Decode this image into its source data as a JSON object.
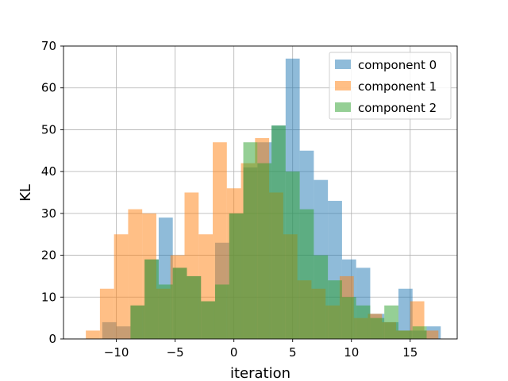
{
  "chart_data": {
    "type": "histogram",
    "title": "",
    "xlabel": "iteration",
    "ylabel": "KL",
    "xlim": [
      -14.5,
      19
    ],
    "ylim": [
      0,
      70
    ],
    "xticks": [
      -10,
      -5,
      0,
      5,
      10,
      15
    ],
    "xtick_labels": [
      "−10",
      "−5",
      "0",
      "5",
      "10",
      "15"
    ],
    "yticks": [
      0,
      10,
      20,
      30,
      40,
      50,
      60,
      70
    ],
    "ytick_labels": [
      "0",
      "10",
      "20",
      "30",
      "40",
      "50",
      "60",
      "70"
    ],
    "grid": true,
    "alpha": 0.5,
    "legend": {
      "placement": "top-right"
    },
    "series": [
      {
        "name": "component 0",
        "color": "#1f77b4",
        "bins": [
          [
            -11.2,
            -10.0,
            4
          ],
          [
            -10.0,
            -8.8,
            3
          ],
          [
            -8.8,
            -7.6,
            8
          ],
          [
            -7.6,
            -6.4,
            19
          ],
          [
            -6.4,
            -5.2,
            29
          ],
          [
            -5.2,
            -4.0,
            17
          ],
          [
            -4.0,
            -2.8,
            15
          ],
          [
            -2.8,
            -1.6,
            9
          ],
          [
            -1.6,
            -0.4,
            23
          ],
          [
            -0.4,
            0.8,
            30
          ],
          [
            0.8,
            2.0,
            41
          ],
          [
            2.0,
            3.2,
            47
          ],
          [
            3.2,
            4.4,
            51
          ],
          [
            4.4,
            5.6,
            67
          ],
          [
            5.6,
            6.8,
            45
          ],
          [
            6.8,
            8.0,
            38
          ],
          [
            8.0,
            9.2,
            33
          ],
          [
            9.2,
            10.4,
            19
          ],
          [
            10.4,
            11.6,
            17
          ],
          [
            11.6,
            12.8,
            6
          ],
          [
            12.8,
            14.0,
            4
          ],
          [
            14.0,
            15.2,
            12
          ],
          [
            15.2,
            16.4,
            2
          ],
          [
            16.4,
            17.6,
            3
          ]
        ]
      },
      {
        "name": "component 1",
        "color": "#ff7f0e",
        "bins": [
          [
            -12.6,
            -11.4,
            2
          ],
          [
            -11.4,
            -10.2,
            12
          ],
          [
            -10.2,
            -9.0,
            25
          ],
          [
            -9.0,
            -7.8,
            31
          ],
          [
            -7.8,
            -6.6,
            30
          ],
          [
            -6.6,
            -5.4,
            12
          ],
          [
            -5.4,
            -4.2,
            20
          ],
          [
            -4.2,
            -3.0,
            35
          ],
          [
            -3.0,
            -1.8,
            25
          ],
          [
            -1.8,
            -0.6,
            47
          ],
          [
            -0.6,
            0.6,
            36
          ],
          [
            0.6,
            1.8,
            42
          ],
          [
            1.8,
            3.0,
            48
          ],
          [
            3.0,
            4.2,
            35
          ],
          [
            4.2,
            5.4,
            25
          ],
          [
            5.4,
            6.6,
            14
          ],
          [
            6.6,
            7.8,
            12
          ],
          [
            7.8,
            9.0,
            8
          ],
          [
            9.0,
            10.2,
            15
          ],
          [
            10.2,
            11.4,
            5
          ],
          [
            11.4,
            12.6,
            6
          ],
          [
            12.6,
            13.8,
            4
          ],
          [
            13.8,
            15.0,
            2
          ],
          [
            15.0,
            16.2,
            9
          ],
          [
            16.2,
            17.4,
            2
          ]
        ]
      },
      {
        "name": "component 2",
        "color": "#2ca02c",
        "bins": [
          [
            -8.8,
            -7.6,
            8
          ],
          [
            -7.6,
            -6.4,
            19
          ],
          [
            -6.4,
            -5.2,
            13
          ],
          [
            -5.2,
            -4.0,
            17
          ],
          [
            -4.0,
            -2.8,
            15
          ],
          [
            -2.8,
            -1.6,
            9
          ],
          [
            -1.6,
            -0.4,
            13
          ],
          [
            -0.4,
            0.8,
            30
          ],
          [
            0.8,
            2.0,
            47
          ],
          [
            2.0,
            3.2,
            42
          ],
          [
            3.2,
            4.4,
            51
          ],
          [
            4.4,
            5.6,
            40
          ],
          [
            5.6,
            6.8,
            31
          ],
          [
            6.8,
            8.0,
            20
          ],
          [
            8.0,
            9.2,
            14
          ],
          [
            9.2,
            10.4,
            10
          ],
          [
            10.4,
            11.6,
            8
          ],
          [
            11.6,
            12.8,
            5
          ],
          [
            12.8,
            14.0,
            8
          ],
          [
            14.0,
            15.2,
            2
          ],
          [
            15.2,
            16.4,
            3
          ]
        ]
      }
    ]
  }
}
